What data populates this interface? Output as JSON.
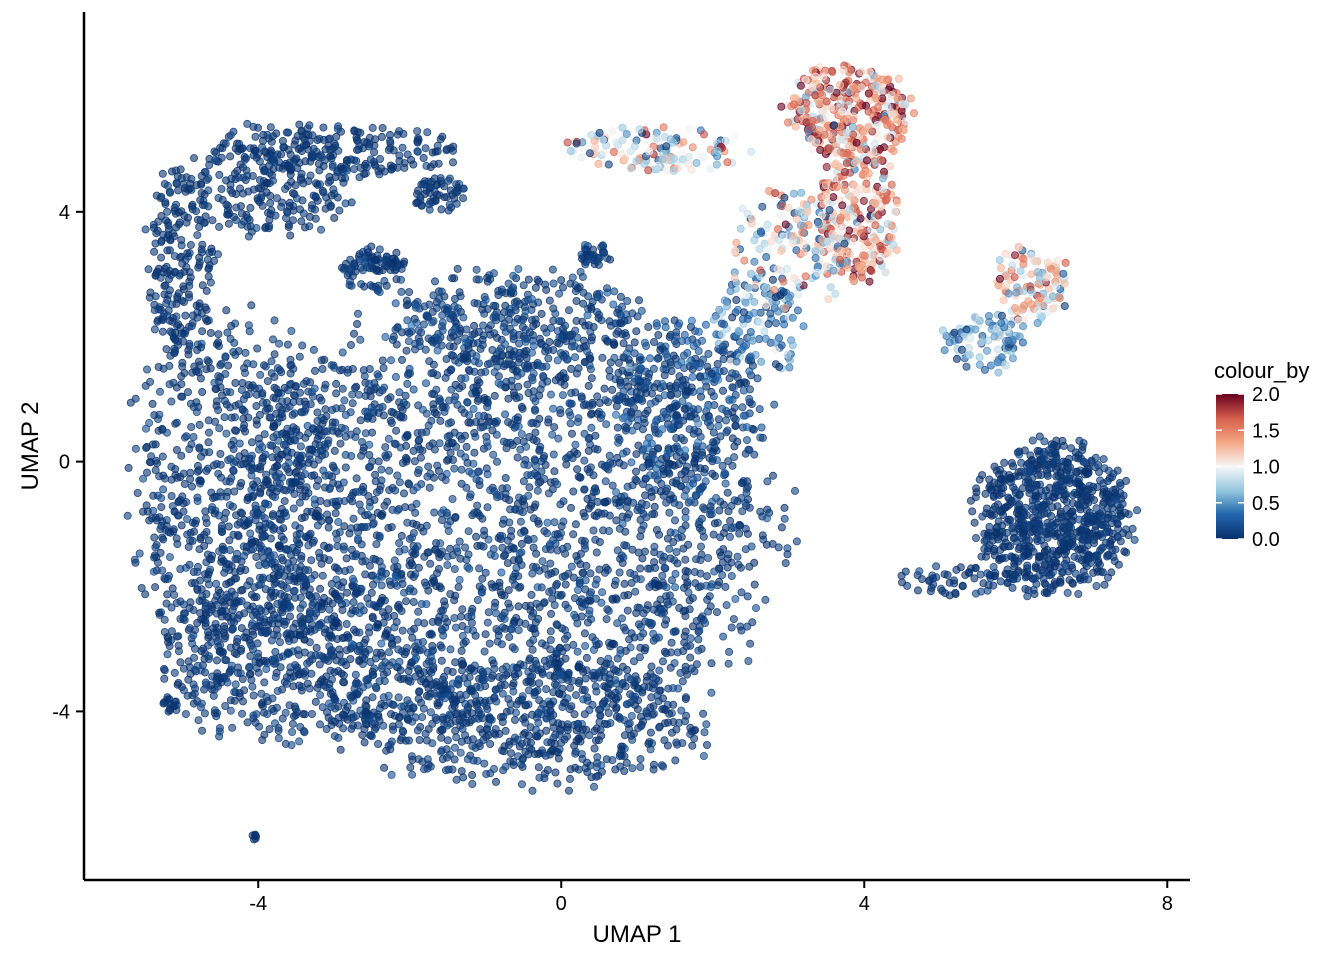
{
  "chart_data": {
    "type": "scatter",
    "xlabel": "UMAP 1",
    "ylabel": "UMAP 2",
    "xlim": [
      -6.3,
      8.3
    ],
    "ylim": [
      -6.7,
      7.2
    ],
    "xticks": [
      -4,
      0,
      4,
      8
    ],
    "xtick_labels": [
      "-4",
      "0",
      "4",
      "8"
    ],
    "yticks": [
      -4,
      0,
      4
    ],
    "ytick_labels": [
      "-4",
      "0",
      "4"
    ],
    "grid": false,
    "legend": {
      "title": "colour_by",
      "position": "right",
      "min": 0.0,
      "max": 2.0,
      "ticks": [
        0.0,
        0.5,
        1.0,
        1.5,
        2.0
      ],
      "tick_labels": [
        "0.0",
        "0.5",
        "1.0",
        "1.5",
        "2.0"
      ]
    },
    "colors": {
      "low": "#08306b",
      "lowmid": "#2166ac",
      "lightblue": "#92c5de",
      "mid": "#f7f7f7",
      "lightred": "#f4a582",
      "highmid": "#d6604d",
      "high": "#67001f"
    },
    "point_opacity": 0.6,
    "clusters": [
      {
        "name": "main-body",
        "shape": "ellipse",
        "cx": -0.8,
        "cy": -1.0,
        "rx": 3.6,
        "ry": 3.5,
        "n": 2600,
        "value_mean": 0.05,
        "value_sd": 0.08
      },
      {
        "name": "left-region",
        "shape": "ellipse",
        "cx": -4.4,
        "cy": -0.5,
        "rx": 1.3,
        "ry": 2.8,
        "n": 700,
        "value_mean": 0.04,
        "value_sd": 0.06
      },
      {
        "name": "lower-left",
        "shape": "ellipse",
        "cx": -3.6,
        "cy": -3.2,
        "rx": 1.6,
        "ry": 1.3,
        "n": 450,
        "value_mean": 0.05,
        "value_sd": 0.06
      },
      {
        "name": "bottom-lobe",
        "shape": "ellipse",
        "cx": -0.5,
        "cy": -4.2,
        "rx": 2.4,
        "ry": 1.0,
        "n": 500,
        "value_mean": 0.05,
        "value_sd": 0.06
      },
      {
        "name": "upper-left-arm",
        "shape": "ellipse",
        "cx": -3.8,
        "cy": 4.5,
        "rx": 1.0,
        "ry": 0.9,
        "n": 260,
        "value_mean": 0.03,
        "value_sd": 0.05
      },
      {
        "name": "upper-arc",
        "shape": "ellipse",
        "cx": -2.6,
        "cy": 5.0,
        "rx": 1.3,
        "ry": 0.4,
        "n": 150,
        "value_mean": 0.03,
        "value_sd": 0.05
      },
      {
        "name": "left-arc-column",
        "shape": "ellipse",
        "cx": -5.0,
        "cy": 3.2,
        "rx": 0.45,
        "ry": 1.6,
        "n": 220,
        "value_mean": 0.03,
        "value_sd": 0.05
      },
      {
        "name": "mid-island",
        "shape": "ellipse",
        "cx": -2.5,
        "cy": 3.1,
        "rx": 0.4,
        "ry": 0.35,
        "n": 90,
        "value_mean": 0.05,
        "value_sd": 0.05
      },
      {
        "name": "upper-right-knob",
        "shape": "ellipse",
        "cx": -1.6,
        "cy": 4.3,
        "rx": 0.35,
        "ry": 0.3,
        "n": 60,
        "value_mean": 0.05,
        "value_sd": 0.05
      },
      {
        "name": "diagonal-band",
        "shape": "ellipse",
        "cx": -0.6,
        "cy": 2.2,
        "rx": 1.6,
        "ry": 0.9,
        "n": 260,
        "value_mean": 0.08,
        "value_sd": 0.1
      },
      {
        "name": "right-body-edge",
        "shape": "ellipse",
        "cx": 1.7,
        "cy": 0.9,
        "rx": 0.9,
        "ry": 1.5,
        "n": 250,
        "value_mean": 0.15,
        "value_sd": 0.15
      },
      {
        "name": "bridge",
        "shape": "ellipse",
        "cx": 2.6,
        "cy": 2.2,
        "rx": 0.6,
        "ry": 0.8,
        "n": 110,
        "value_mean": 0.35,
        "value_sd": 0.25
      },
      {
        "name": "small-blob",
        "shape": "ellipse",
        "cx": 0.45,
        "cy": 3.3,
        "rx": 0.2,
        "ry": 0.2,
        "n": 35,
        "value_mean": 0.1,
        "value_sd": 0.1
      },
      {
        "name": "top-red-cluster",
        "shape": "ellipse",
        "cx": 3.8,
        "cy": 5.6,
        "rx": 0.8,
        "ry": 0.75,
        "n": 340,
        "value_mean": 1.45,
        "value_sd": 0.45
      },
      {
        "name": "red-column",
        "shape": "ellipse",
        "cx": 3.9,
        "cy": 3.9,
        "rx": 0.55,
        "ry": 1.1,
        "n": 260,
        "value_mean": 1.35,
        "value_sd": 0.45
      },
      {
        "name": "red-spread",
        "shape": "ellipse",
        "cx": 3.0,
        "cy": 3.4,
        "rx": 0.8,
        "ry": 0.9,
        "n": 160,
        "value_mean": 0.9,
        "value_sd": 0.5
      },
      {
        "name": "red-arm-left",
        "shape": "ellipse",
        "cx": 1.3,
        "cy": 5.0,
        "rx": 1.2,
        "ry": 0.35,
        "n": 120,
        "value_mean": 0.95,
        "value_sd": 0.5
      },
      {
        "name": "right-mid-cluster",
        "shape": "ellipse",
        "cx": 6.2,
        "cy": 2.8,
        "rx": 0.5,
        "ry": 0.6,
        "n": 120,
        "value_mean": 1.05,
        "value_sd": 0.4
      },
      {
        "name": "transition",
        "shape": "ellipse",
        "cx": 5.6,
        "cy": 1.9,
        "rx": 0.55,
        "ry": 0.5,
        "n": 90,
        "value_mean": 0.55,
        "value_sd": 0.35
      },
      {
        "name": "right-cluster",
        "shape": "ellipse",
        "cx": 6.5,
        "cy": -0.9,
        "rx": 1.0,
        "ry": 1.2,
        "n": 780,
        "value_mean": 0.03,
        "value_sd": 0.05
      },
      {
        "name": "right-tail",
        "shape": "ellipse",
        "cx": 5.2,
        "cy": -1.9,
        "rx": 0.8,
        "ry": 0.25,
        "n": 60,
        "value_mean": 0.04,
        "value_sd": 0.05
      },
      {
        "name": "left-outlier-group",
        "shape": "ellipse",
        "cx": -5.2,
        "cy": -3.9,
        "rx": 0.15,
        "ry": 0.12,
        "n": 15,
        "value_mean": 0.02,
        "value_sd": 0.02
      },
      {
        "name": "bottom-outlier",
        "shape": "ellipse",
        "cx": -4.05,
        "cy": -6.0,
        "rx": 0.04,
        "ry": 0.05,
        "n": 6,
        "value_mean": 0.02,
        "value_sd": 0.02
      }
    ]
  }
}
